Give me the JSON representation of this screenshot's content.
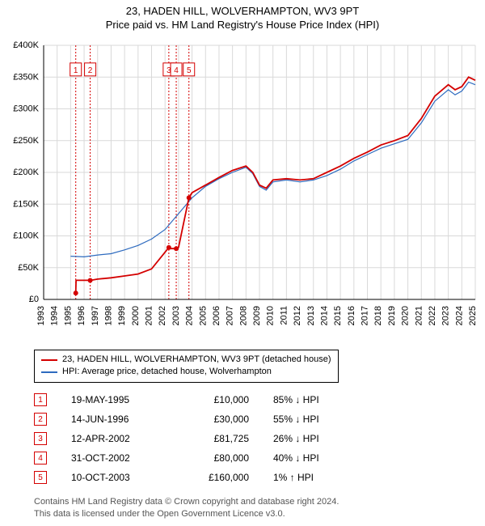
{
  "title": {
    "line1": "23, HADEN HILL, WOLVERHAMPTON, WV3 9PT",
    "line2": "Price paid vs. HM Land Registry's House Price Index (HPI)",
    "fontsize": 13
  },
  "chart": {
    "type": "line",
    "background_color": "#ffffff",
    "grid_color": "#d9d9d9",
    "axis_color": "#000000",
    "label_fontsize": 11,
    "xlim": [
      1993,
      2025
    ],
    "ylim": [
      0,
      400000
    ],
    "ytick_step": 50000,
    "ytick_labels": [
      "£0",
      "£50K",
      "£100K",
      "£150K",
      "£200K",
      "£250K",
      "£300K",
      "£350K",
      "£400K"
    ],
    "xtick_step": 1,
    "xtick_labels": [
      "1993",
      "1994",
      "1995",
      "1996",
      "1997",
      "1998",
      "1999",
      "2000",
      "2001",
      "2002",
      "2003",
      "2004",
      "2005",
      "2006",
      "2007",
      "2008",
      "2009",
      "2010",
      "2011",
      "2012",
      "2013",
      "2014",
      "2015",
      "2016",
      "2017",
      "2018",
      "2019",
      "2020",
      "2021",
      "2022",
      "2023",
      "2024",
      "2025"
    ],
    "series": [
      {
        "name": "subject",
        "color": "#d40000",
        "width": 1.8,
        "label": "23, HADEN HILL, WOLVERHAMPTON, WV3 9PT (detached house)",
        "points": [
          [
            1995.38,
            10000
          ],
          [
            1995.4,
            30000
          ],
          [
            1996.45,
            30000
          ],
          [
            1996.5,
            30000
          ],
          [
            1997,
            32000
          ],
          [
            1998,
            34000
          ],
          [
            1999,
            37000
          ],
          [
            2000,
            40000
          ],
          [
            2001,
            48000
          ],
          [
            2002.28,
            81725
          ],
          [
            2002.3,
            80000
          ],
          [
            2002.83,
            80000
          ],
          [
            2003.0,
            82000
          ],
          [
            2003.77,
            160000
          ],
          [
            2004,
            168000
          ],
          [
            2005,
            180000
          ],
          [
            2006,
            192000
          ],
          [
            2007,
            203000
          ],
          [
            2008,
            210000
          ],
          [
            2008.5,
            200000
          ],
          [
            2009,
            180000
          ],
          [
            2009.5,
            175000
          ],
          [
            2010,
            188000
          ],
          [
            2011,
            190000
          ],
          [
            2012,
            188000
          ],
          [
            2013,
            190000
          ],
          [
            2014,
            200000
          ],
          [
            2015,
            210000
          ],
          [
            2016,
            222000
          ],
          [
            2017,
            232000
          ],
          [
            2018,
            243000
          ],
          [
            2019,
            250000
          ],
          [
            2020,
            258000
          ],
          [
            2021,
            285000
          ],
          [
            2022,
            320000
          ],
          [
            2023,
            338000
          ],
          [
            2023.5,
            330000
          ],
          [
            2024,
            335000
          ],
          [
            2024.5,
            350000
          ],
          [
            2025,
            345000
          ]
        ]
      },
      {
        "name": "hpi",
        "color": "#2e6bbf",
        "width": 1.2,
        "label": "HPI: Average price, detached house, Wolverhampton",
        "points": [
          [
            1995,
            68000
          ],
          [
            1996,
            67000
          ],
          [
            1997,
            70000
          ],
          [
            1998,
            72000
          ],
          [
            1999,
            78000
          ],
          [
            2000,
            85000
          ],
          [
            2001,
            95000
          ],
          [
            2002,
            110000
          ],
          [
            2003,
            135000
          ],
          [
            2004,
            160000
          ],
          [
            2005,
            178000
          ],
          [
            2006,
            190000
          ],
          [
            2007,
            200000
          ],
          [
            2008,
            208000
          ],
          [
            2008.5,
            198000
          ],
          [
            2009,
            178000
          ],
          [
            2009.5,
            172000
          ],
          [
            2010,
            185000
          ],
          [
            2011,
            188000
          ],
          [
            2012,
            185000
          ],
          [
            2013,
            188000
          ],
          [
            2014,
            195000
          ],
          [
            2015,
            205000
          ],
          [
            2016,
            218000
          ],
          [
            2017,
            228000
          ],
          [
            2018,
            238000
          ],
          [
            2019,
            245000
          ],
          [
            2020,
            252000
          ],
          [
            2021,
            278000
          ],
          [
            2022,
            312000
          ],
          [
            2023,
            330000
          ],
          [
            2023.5,
            322000
          ],
          [
            2024,
            328000
          ],
          [
            2024.5,
            342000
          ],
          [
            2025,
            338000
          ]
        ]
      }
    ],
    "markers": [
      {
        "n": "1",
        "x": 1995.38,
        "y": 10000,
        "color": "#d40000"
      },
      {
        "n": "2",
        "x": 1996.45,
        "y": 30000,
        "color": "#d40000"
      },
      {
        "n": "3",
        "x": 2002.28,
        "y": 81725,
        "color": "#d40000"
      },
      {
        "n": "4",
        "x": 2002.83,
        "y": 80000,
        "color": "#d40000"
      },
      {
        "n": "5",
        "x": 2003.77,
        "y": 160000,
        "color": "#d40000"
      }
    ]
  },
  "legend": {
    "items": [
      {
        "color": "#d40000",
        "label": "23, HADEN HILL, WOLVERHAMPTON, WV3 9PT (detached house)"
      },
      {
        "color": "#2e6bbf",
        "label": "HPI: Average price, detached house, Wolverhampton"
      }
    ]
  },
  "transactions": [
    {
      "n": "1",
      "date": "19-MAY-1995",
      "price": "£10,000",
      "diff": "85% ↓ HPI"
    },
    {
      "n": "2",
      "date": "14-JUN-1996",
      "price": "£30,000",
      "diff": "55% ↓ HPI"
    },
    {
      "n": "3",
      "date": "12-APR-2002",
      "price": "£81,725",
      "diff": "26% ↓ HPI"
    },
    {
      "n": "4",
      "date": "31-OCT-2002",
      "price": "£80,000",
      "diff": "40% ↓ HPI"
    },
    {
      "n": "5",
      "date": "10-OCT-2003",
      "price": "£160,000",
      "diff": "1% ↑ HPI"
    }
  ],
  "attribution": {
    "line1": "Contains HM Land Registry data © Crown copyright and database right 2024.",
    "line2": "This data is licensed under the Open Government Licence v3.0."
  },
  "marker_box_color": "#d40000"
}
